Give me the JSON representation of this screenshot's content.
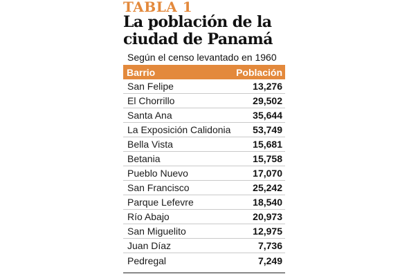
{
  "table": {
    "kicker": "TABLA 1",
    "title_line1": "La población de la",
    "title_line2": "ciudad de Panamá",
    "subtitle": "Según el censo levantado en 1960",
    "header_barrio": "Barrio",
    "header_poblacion": "Población",
    "rows": [
      {
        "barrio": "San Felipe",
        "poblacion": "13,276"
      },
      {
        "barrio": "El Chorrillo",
        "poblacion": "29,502"
      },
      {
        "barrio": "Santa Ana",
        "poblacion": "35,644"
      },
      {
        "barrio": "La Exposición Calidonia",
        "poblacion": "53,749"
      },
      {
        "barrio": "Bella Vista",
        "poblacion": "15,681"
      },
      {
        "barrio": "Betania",
        "poblacion": "15,758"
      },
      {
        "barrio": "Pueblo Nuevo",
        "poblacion": "17,070"
      },
      {
        "barrio": "San Francisco",
        "poblacion": "25,242"
      },
      {
        "barrio": "Parque Lefevre",
        "poblacion": "18,540"
      },
      {
        "barrio": "Río Abajo",
        "poblacion": "20,973"
      },
      {
        "barrio": "San Miguelito",
        "poblacion": "12,975"
      },
      {
        "barrio": "Juan Díaz",
        "poblacion": "7,736"
      },
      {
        "barrio": "Pedregal",
        "poblacion": "7,249"
      }
    ]
  },
  "colors": {
    "accent": "#e3893c",
    "text": "#111111",
    "row_divider": "#c9c9c9"
  }
}
